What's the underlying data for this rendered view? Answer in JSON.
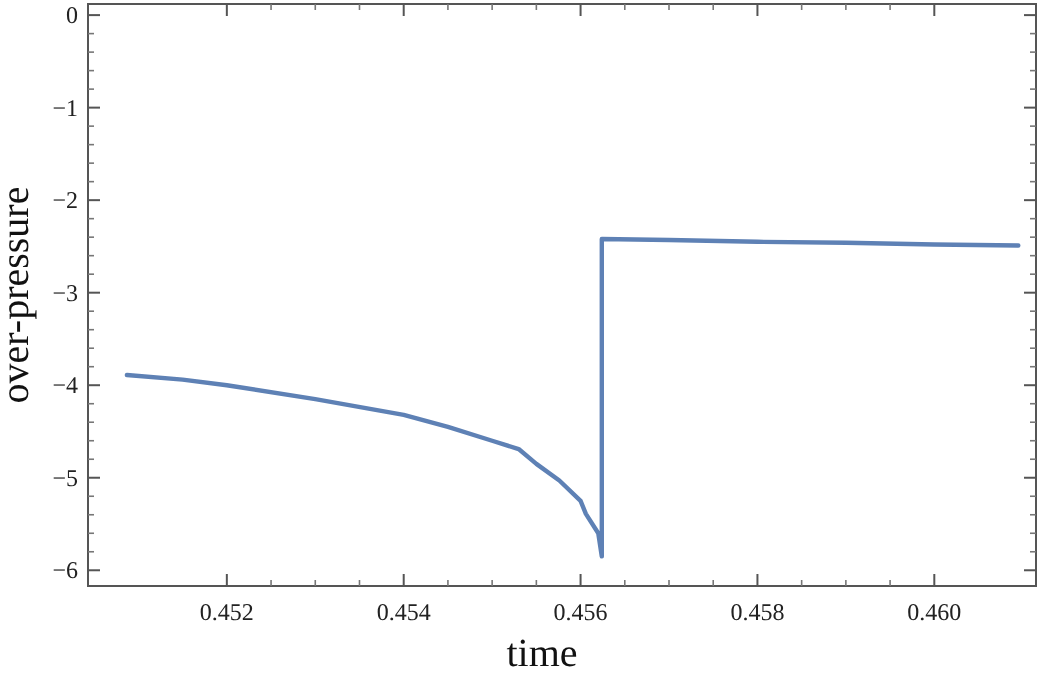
{
  "chart_data": {
    "type": "line",
    "xlabel": "time",
    "ylabel": "over-pressure",
    "x": [
      0.45087,
      0.4515,
      0.452,
      0.453,
      0.454,
      0.4545,
      0.455,
      0.4553,
      0.4555,
      0.45576,
      0.456,
      0.45606,
      0.4562,
      0.45624,
      0.45624,
      0.457,
      0.458,
      0.459,
      0.46,
      0.46095
    ],
    "series": [
      {
        "color": "#5e81b5",
        "values": [
          -3.89,
          -3.94,
          -4.0,
          -4.15,
          -4.32,
          -4.45,
          -4.6,
          -4.69,
          -4.85,
          -5.03,
          -5.25,
          -5.39,
          -5.6,
          -5.85,
          -2.42,
          -2.43,
          -2.45,
          -2.46,
          -2.48,
          -2.49
        ]
      }
    ],
    "xlim": [
      0.45043,
      0.46115
    ],
    "ylim": [
      -6.17,
      0.12
    ],
    "xticks": [
      {
        "value": 0.452,
        "label": "0.452"
      },
      {
        "value": 0.454,
        "label": "0.454"
      },
      {
        "value": 0.456,
        "label": "0.456"
      },
      {
        "value": 0.458,
        "label": "0.458"
      },
      {
        "value": 0.46,
        "label": "0.460"
      }
    ],
    "yticks": [
      0,
      -1,
      -2,
      -3,
      -4,
      -5,
      -6
    ],
    "grid": false,
    "marker": "none",
    "line_style": "solid"
  }
}
